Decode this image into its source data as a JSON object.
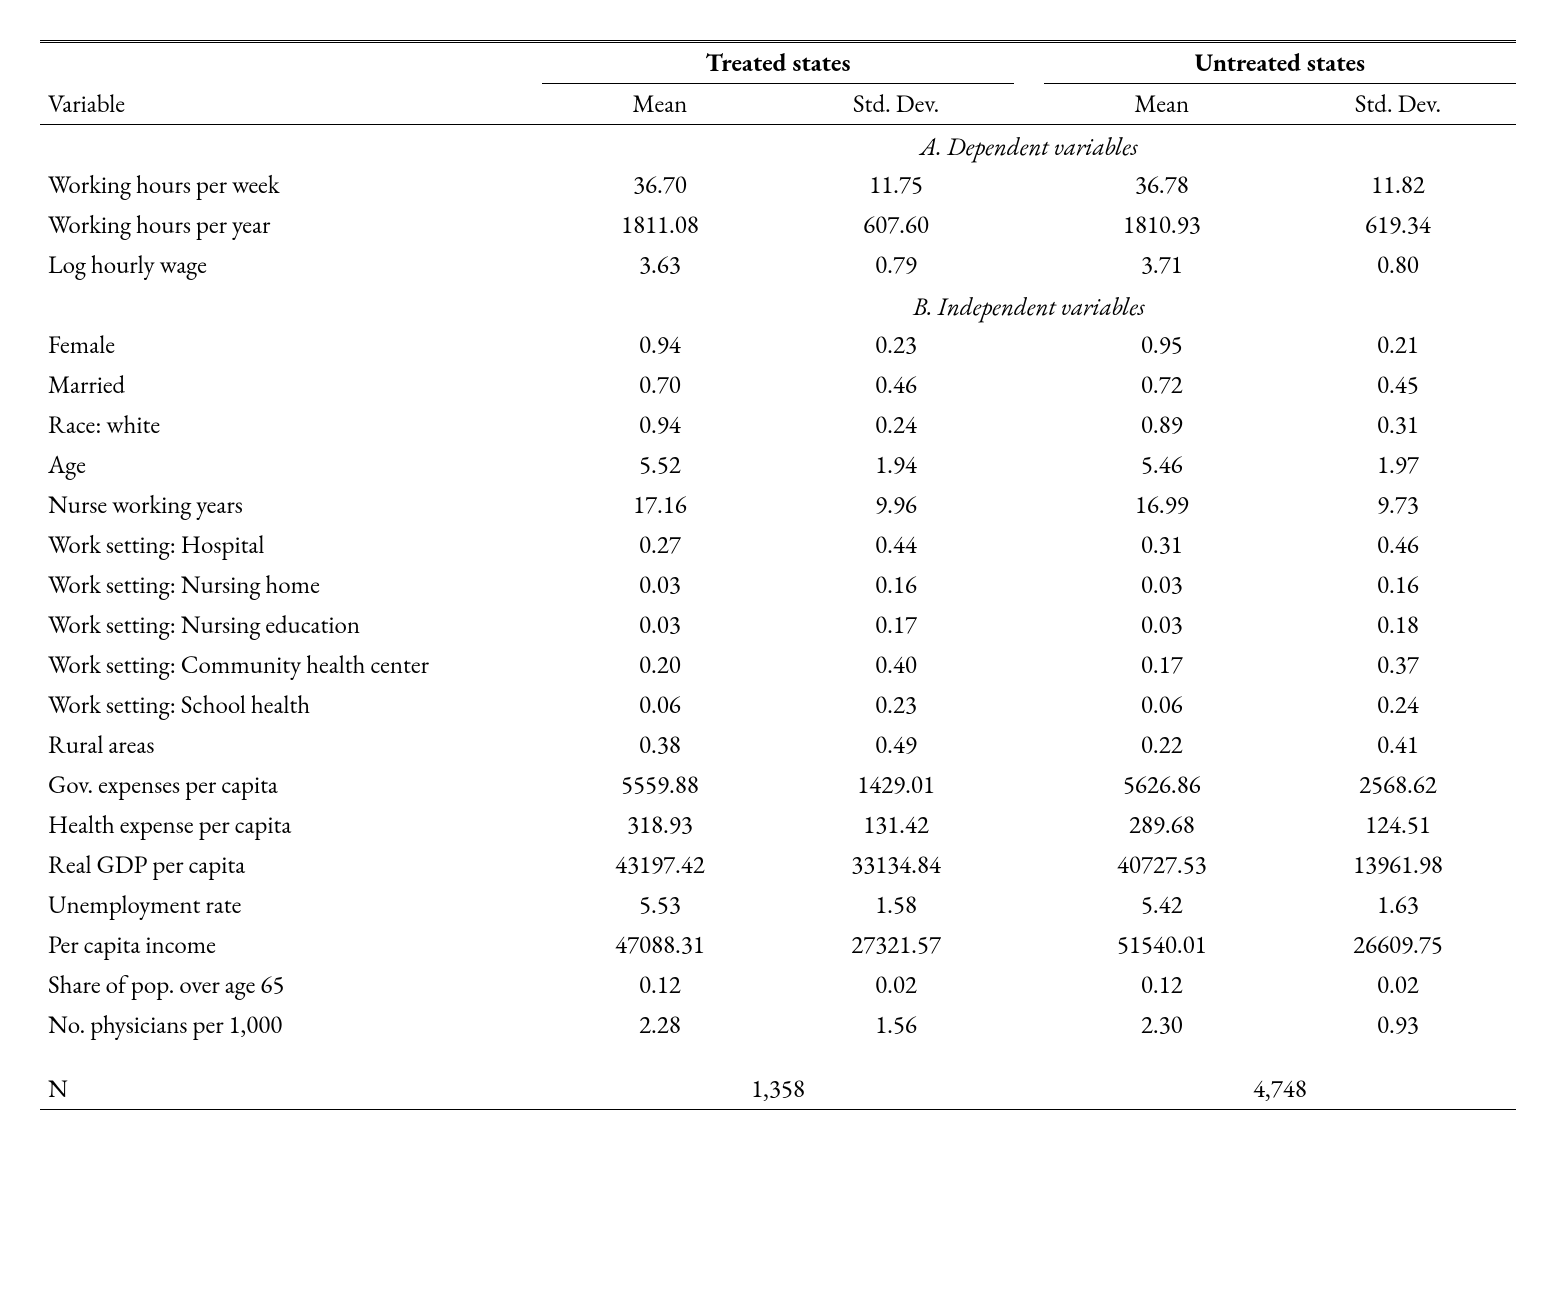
{
  "type": "table",
  "background_color": "#ffffff",
  "text_color": "#000000",
  "font_family_serif": "Garamond / Caslon style",
  "font_size_pt": 19,
  "columns": {
    "variable": {
      "label": "Variable",
      "width_pct": 32,
      "align": "left"
    },
    "groups": [
      {
        "label": "Treated states",
        "sub": [
          "Mean",
          "Std. Dev."
        ]
      },
      {
        "label": "Untreated states",
        "sub": [
          "Mean",
          "Std. Dev."
        ]
      }
    ],
    "data_col_width_pct": 16,
    "data_align": "center"
  },
  "panels": [
    {
      "label": "A. Dependent variables",
      "rows": [
        {
          "var": "Working hours per week",
          "t_mean": "36.70",
          "t_sd": "11.75",
          "u_mean": "36.78",
          "u_sd": "11.82"
        },
        {
          "var": "Working hours per year",
          "t_mean": "1811.08",
          "t_sd": "607.60",
          "u_mean": "1810.93",
          "u_sd": "619.34"
        },
        {
          "var": "Log hourly wage",
          "t_mean": "3.63",
          "t_sd": "0.79",
          "u_mean": "3.71",
          "u_sd": "0.80"
        }
      ]
    },
    {
      "label": "B. Independent variables",
      "rows": [
        {
          "var": "Female",
          "t_mean": "0.94",
          "t_sd": "0.23",
          "u_mean": "0.95",
          "u_sd": "0.21"
        },
        {
          "var": "Married",
          "t_mean": "0.70",
          "t_sd": "0.46",
          "u_mean": "0.72",
          "u_sd": "0.45"
        },
        {
          "var": "Race: white",
          "t_mean": "0.94",
          "t_sd": "0.24",
          "u_mean": "0.89",
          "u_sd": "0.31"
        },
        {
          "var": "Age",
          "t_mean": "5.52",
          "t_sd": "1.94",
          "u_mean": "5.46",
          "u_sd": "1.97"
        },
        {
          "var": "Nurse working years",
          "t_mean": "17.16",
          "t_sd": "9.96",
          "u_mean": "16.99",
          "u_sd": "9.73"
        },
        {
          "var": "Work setting: Hospital",
          "t_mean": "0.27",
          "t_sd": "0.44",
          "u_mean": "0.31",
          "u_sd": "0.46"
        },
        {
          "var": "Work setting: Nursing home",
          "t_mean": "0.03",
          "t_sd": "0.16",
          "u_mean": "0.03",
          "u_sd": "0.16"
        },
        {
          "var": "Work setting: Nursing education",
          "t_mean": "0.03",
          "t_sd": "0.17",
          "u_mean": "0.03",
          "u_sd": "0.18"
        },
        {
          "var": "Work setting: Community health center",
          "t_mean": "0.20",
          "t_sd": "0.40",
          "u_mean": "0.17",
          "u_sd": "0.37",
          "wrap": true
        },
        {
          "var": "Work setting: School health",
          "t_mean": "0.06",
          "t_sd": "0.23",
          "u_mean": "0.06",
          "u_sd": "0.24"
        },
        {
          "var": "Rural areas",
          "t_mean": "0.38",
          "t_sd": "0.49",
          "u_mean": "0.22",
          "u_sd": "0.41"
        },
        {
          "var": "Gov. expenses per capita",
          "t_mean": "5559.88",
          "t_sd": "1429.01",
          "u_mean": "5626.86",
          "u_sd": "2568.62"
        },
        {
          "var": "Health expense per capita",
          "t_mean": "318.93",
          "t_sd": "131.42",
          "u_mean": "289.68",
          "u_sd": "124.51"
        },
        {
          "var": "Real GDP per capita",
          "t_mean": "43197.42",
          "t_sd": "33134.84",
          "u_mean": "40727.53",
          "u_sd": "13961.98"
        },
        {
          "var": "Unemployment rate",
          "t_mean": "5.53",
          "t_sd": "1.58",
          "u_mean": "5.42",
          "u_sd": "1.63"
        },
        {
          "var": "Per capita income",
          "t_mean": "47088.31",
          "t_sd": "27321.57",
          "u_mean": "51540.01",
          "u_sd": "26609.75"
        },
        {
          "var": "Share of pop. over age 65",
          "t_mean": "0.12",
          "t_sd": "0.02",
          "u_mean": "0.12",
          "u_sd": "0.02"
        },
        {
          "var": "No. physicians per 1,000",
          "t_mean": "2.28",
          "t_sd": "1.56",
          "u_mean": "2.30",
          "u_sd": "0.93"
        }
      ]
    }
  ],
  "n_row": {
    "label": "N",
    "treated": "1,358",
    "untreated": "4,748"
  },
  "rules": {
    "top": "double",
    "header_bottom": "single",
    "bottom": "single",
    "group_underline": "single"
  }
}
